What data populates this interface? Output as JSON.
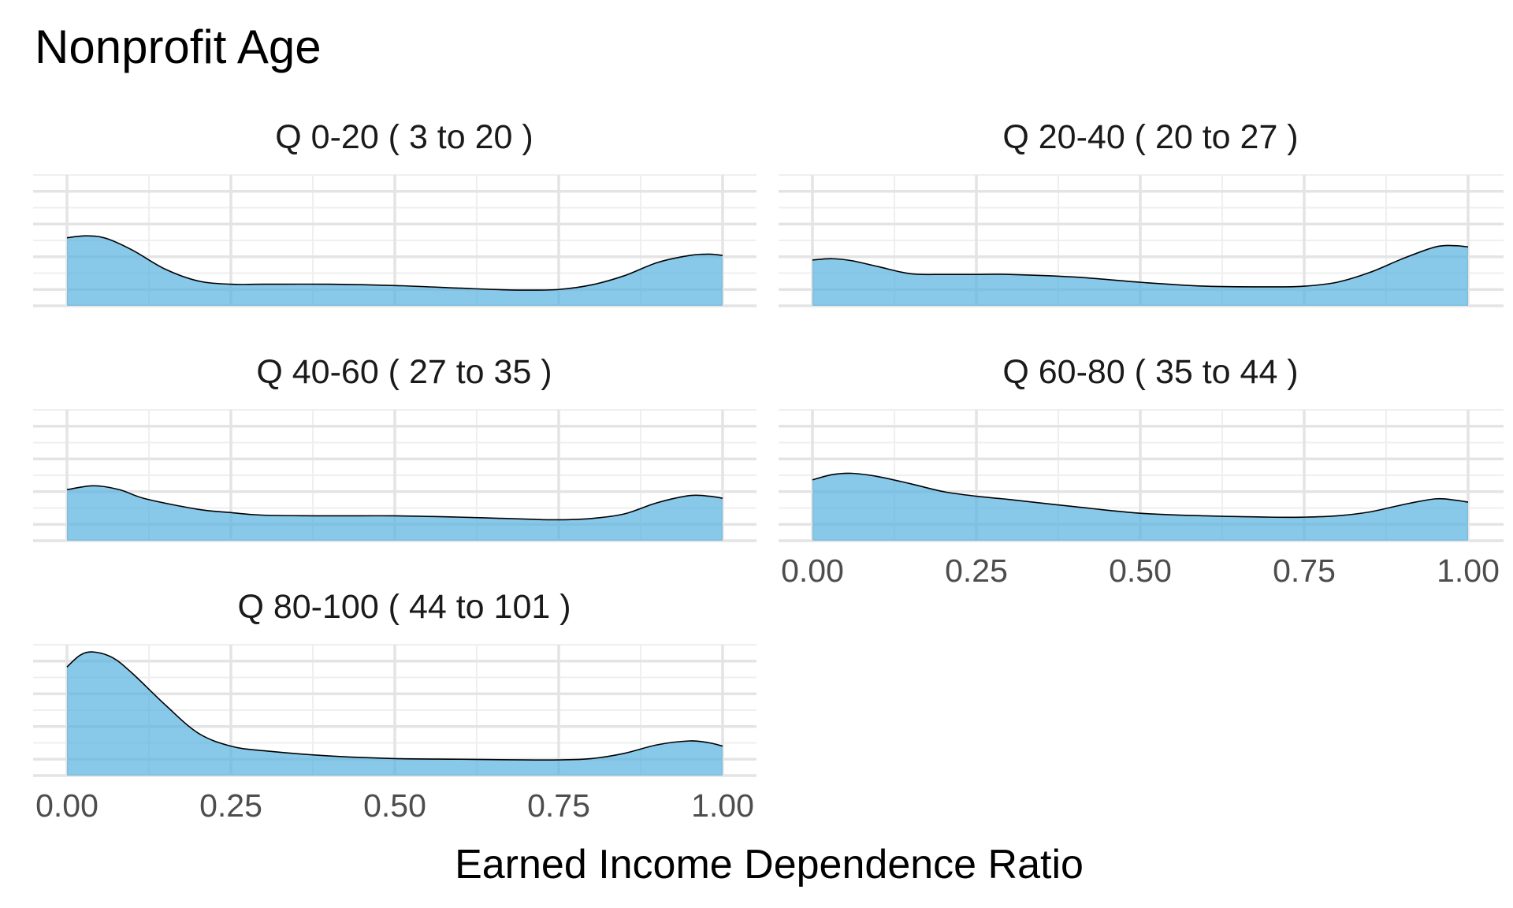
{
  "chart_data": {
    "type": "area",
    "title": "Nonprofit Age",
    "xlabel": "Earned Income Dependence Ratio",
    "ylabel": "",
    "xlim": [
      0,
      1
    ],
    "x_ticks": [
      "0.00",
      "0.25",
      "0.50",
      "0.75",
      "1.00"
    ],
    "grid": true,
    "fill_color": "#56B0E0",
    "panels": [
      {
        "label": "Q 0-20   ( 3 to 20 )",
        "x": [
          0.0,
          0.03,
          0.06,
          0.1,
          0.15,
          0.2,
          0.25,
          0.3,
          0.4,
          0.5,
          0.6,
          0.65,
          0.7,
          0.75,
          0.8,
          0.85,
          0.9,
          0.95,
          0.98,
          1.0
        ],
        "y": [
          1.04,
          1.07,
          1.03,
          0.85,
          0.56,
          0.38,
          0.33,
          0.33,
          0.33,
          0.31,
          0.27,
          0.25,
          0.24,
          0.25,
          0.32,
          0.46,
          0.66,
          0.77,
          0.79,
          0.77
        ]
      },
      {
        "label": "Q 20-40   ( 20 to 27 )",
        "x": [
          0.0,
          0.03,
          0.06,
          0.1,
          0.15,
          0.2,
          0.25,
          0.3,
          0.4,
          0.5,
          0.6,
          0.7,
          0.75,
          0.8,
          0.85,
          0.9,
          0.95,
          0.98,
          1.0
        ],
        "y": [
          0.7,
          0.72,
          0.69,
          0.6,
          0.49,
          0.48,
          0.48,
          0.48,
          0.44,
          0.36,
          0.3,
          0.29,
          0.3,
          0.36,
          0.51,
          0.72,
          0.9,
          0.92,
          0.9
        ]
      },
      {
        "label": "Q 40-60   ( 27 to 35 )",
        "x": [
          0.0,
          0.04,
          0.08,
          0.12,
          0.2,
          0.25,
          0.3,
          0.4,
          0.5,
          0.6,
          0.7,
          0.75,
          0.8,
          0.85,
          0.9,
          0.95,
          0.98,
          1.0
        ],
        "y": [
          0.78,
          0.84,
          0.78,
          0.64,
          0.48,
          0.43,
          0.39,
          0.38,
          0.38,
          0.36,
          0.33,
          0.32,
          0.34,
          0.41,
          0.58,
          0.69,
          0.68,
          0.65
        ]
      },
      {
        "label": "Q 60-80   ( 35 to 44 )",
        "x": [
          0.0,
          0.03,
          0.06,
          0.1,
          0.15,
          0.2,
          0.25,
          0.3,
          0.4,
          0.5,
          0.6,
          0.7,
          0.75,
          0.8,
          0.85,
          0.9,
          0.95,
          0.98,
          1.0
        ],
        "y": [
          0.93,
          1.01,
          1.03,
          0.98,
          0.87,
          0.75,
          0.68,
          0.63,
          0.52,
          0.42,
          0.38,
          0.36,
          0.36,
          0.38,
          0.44,
          0.55,
          0.64,
          0.62,
          0.59
        ]
      },
      {
        "label": "Q 80-100   ( 44 to 101 )",
        "x": [
          0.0,
          0.02,
          0.04,
          0.07,
          0.1,
          0.15,
          0.2,
          0.25,
          0.3,
          0.4,
          0.5,
          0.6,
          0.7,
          0.75,
          0.8,
          0.85,
          0.9,
          0.95,
          0.98,
          1.0
        ],
        "y": [
          1.66,
          1.84,
          1.89,
          1.8,
          1.56,
          1.08,
          0.65,
          0.45,
          0.38,
          0.3,
          0.26,
          0.25,
          0.24,
          0.24,
          0.26,
          0.34,
          0.47,
          0.53,
          0.5,
          0.45
        ]
      }
    ]
  }
}
